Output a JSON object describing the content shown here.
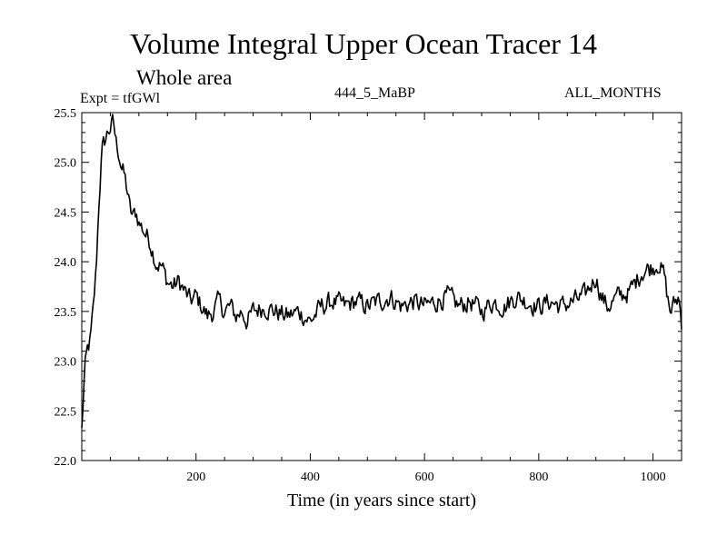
{
  "title": "Volume Integral Upper Ocean Tracer 14",
  "subtitle": "Whole area",
  "experiment": "Expt = tfGWl",
  "run_label": "444_5_MaBP",
  "months_label": "ALL_MONTHS",
  "chart_data": {
    "type": "line",
    "title": "Volume Integral Upper Ocean Tracer 14",
    "xlabel": "Time (in years since start)",
    "ylabel": "",
    "xlim": [
      0,
      1050
    ],
    "ylim": [
      22.0,
      25.5
    ],
    "xticks": [
      200,
      400,
      600,
      800,
      1000
    ],
    "yticks": [
      22.0,
      22.5,
      23.0,
      23.5,
      24.0,
      24.5,
      25.0,
      25.5
    ],
    "xtick_labels": [
      "200",
      "400",
      "600",
      "800",
      "1000"
    ],
    "ytick_labels": [
      "22.0",
      "22.5",
      "23.0",
      "23.5",
      "24.0",
      "24.5",
      "25.0",
      "25.5"
    ],
    "series": [
      {
        "name": "Tracer 14",
        "color": "#000000",
        "x": [
          0,
          5,
          10,
          15,
          20,
          25,
          30,
          35,
          40,
          45,
          50,
          55,
          60,
          65,
          70,
          75,
          80,
          85,
          90,
          95,
          100,
          110,
          120,
          130,
          140,
          150,
          160,
          170,
          180,
          190,
          200,
          210,
          220,
          230,
          240,
          250,
          260,
          270,
          280,
          290,
          300,
          320,
          340,
          360,
          380,
          400,
          420,
          440,
          460,
          480,
          500,
          520,
          540,
          560,
          580,
          600,
          620,
          640,
          660,
          680,
          700,
          720,
          740,
          760,
          780,
          800,
          820,
          840,
          860,
          880,
          900,
          910,
          920,
          940,
          960,
          980,
          1000,
          1010,
          1020,
          1025,
          1030,
          1040,
          1045,
          1050
        ],
        "y": [
          22.3,
          22.9,
          23.1,
          23.2,
          23.5,
          23.9,
          24.6,
          25.1,
          25.2,
          25.3,
          25.35,
          25.4,
          25.2,
          25.1,
          24.95,
          24.85,
          24.7,
          24.5,
          24.45,
          24.5,
          24.4,
          24.3,
          24.2,
          24.0,
          23.95,
          23.8,
          23.75,
          23.8,
          23.7,
          23.6,
          23.65,
          23.55,
          23.45,
          23.5,
          23.6,
          23.5,
          23.55,
          23.45,
          23.5,
          23.4,
          23.5,
          23.55,
          23.5,
          23.45,
          23.5,
          23.4,
          23.55,
          23.6,
          23.55,
          23.6,
          23.55,
          23.6,
          23.65,
          23.55,
          23.6,
          23.55,
          23.6,
          23.65,
          23.55,
          23.6,
          23.5,
          23.6,
          23.55,
          23.65,
          23.6,
          23.55,
          23.6,
          23.55,
          23.6,
          23.65,
          23.85,
          23.65,
          23.55,
          23.65,
          23.7,
          23.9,
          23.95,
          24.0,
          23.85,
          23.65,
          23.5,
          23.6,
          23.65,
          23.4
        ]
      }
    ]
  }
}
